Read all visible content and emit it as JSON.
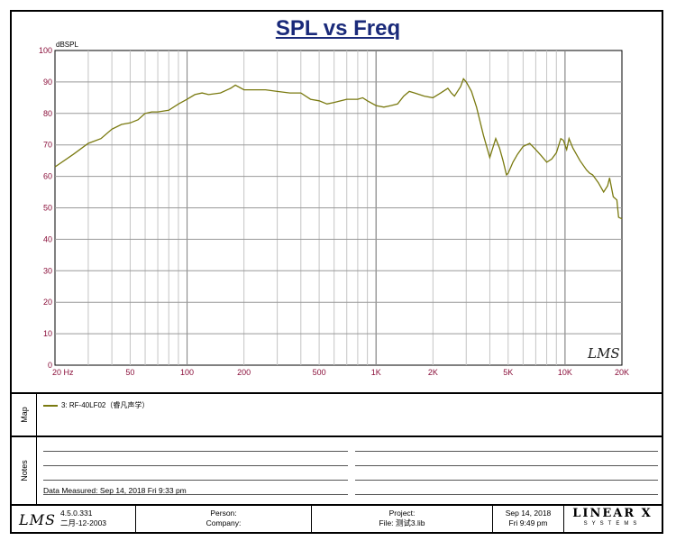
{
  "chart_data": {
    "type": "line",
    "title": "SPL vs Freq",
    "ylabel": "dBSPL",
    "xlabel": "",
    "xscale": "log",
    "xlim": [
      20,
      20000
    ],
    "ylim": [
      0,
      100
    ],
    "grid": true,
    "x_tick_labels": [
      {
        "value": 20,
        "label": "20 Hz"
      },
      {
        "value": 50,
        "label": "50"
      },
      {
        "value": 100,
        "label": "100"
      },
      {
        "value": 200,
        "label": "200"
      },
      {
        "value": 500,
        "label": "500"
      },
      {
        "value": 1000,
        "label": "1K"
      },
      {
        "value": 2000,
        "label": "2K"
      },
      {
        "value": 5000,
        "label": "5K"
      },
      {
        "value": 10000,
        "label": "10K"
      },
      {
        "value": 20000,
        "label": "20K"
      }
    ],
    "y_ticks": [
      0,
      10,
      20,
      30,
      40,
      50,
      60,
      70,
      80,
      90,
      100
    ],
    "series": [
      {
        "name": "3: RF-40LF02（睿凡声学）",
        "color": "#7a7a10",
        "x": [
          20,
          25,
          30,
          35,
          40,
          45,
          50,
          55,
          60,
          65,
          70,
          80,
          90,
          100,
          110,
          120,
          130,
          150,
          170,
          180,
          200,
          230,
          260,
          300,
          350,
          400,
          450,
          500,
          550,
          600,
          700,
          800,
          850,
          900,
          1000,
          1100,
          1200,
          1300,
          1400,
          1500,
          1600,
          1800,
          2000,
          2200,
          2400,
          2500,
          2600,
          2800,
          2900,
          3000,
          3200,
          3400,
          3700,
          4000,
          4300,
          4500,
          4700,
          4900,
          5000,
          5300,
          5600,
          6000,
          6500,
          7000,
          7500,
          8000,
          8500,
          9000,
          9500,
          9800,
          10200,
          10500,
          11000,
          12000,
          13000,
          13500,
          14000,
          15000,
          16000,
          16800,
          17200,
          18000,
          18800,
          19200,
          20000
        ],
        "y": [
          63,
          67,
          70.5,
          72,
          75,
          76.5,
          77,
          78,
          80,
          80.5,
          80.5,
          81,
          83,
          84.5,
          86,
          86.5,
          86,
          86.5,
          88,
          89,
          87.5,
          87.5,
          87.5,
          87,
          86.5,
          86.5,
          84.5,
          84,
          83,
          83.5,
          84.5,
          84.5,
          85,
          84,
          82.5,
          82,
          82.5,
          83,
          85.5,
          87,
          86.5,
          85.5,
          85,
          86.5,
          88,
          86.5,
          85.5,
          88.5,
          91,
          90,
          87,
          82,
          73,
          66,
          72,
          69,
          65,
          60.5,
          61,
          64.5,
          67,
          69.5,
          70.5,
          68.5,
          66.5,
          64.5,
          65.5,
          67.5,
          72,
          71.5,
          68.5,
          72,
          69,
          65,
          62,
          61,
          60.5,
          58,
          55,
          57,
          59.5,
          53.5,
          52.5,
          47,
          46.5
        ]
      }
    ]
  },
  "watermark_logo": "LMS",
  "map_label": "Map",
  "notes_label": "Notes",
  "measured_label": "Data Measured: Sep 14, 2018  Fri  9:33 pm",
  "footer": {
    "logo": "LMS",
    "version": "4.5.0.331",
    "version_date": "二月-12-2003",
    "person_label": "Person:",
    "company_label": "Company:",
    "project_label": "Project:",
    "file_label": "File: 测试3.lib",
    "date": "Sep 14, 2018",
    "time": "Fri  9:49 pm",
    "brand_main": "LINEAR X",
    "brand_sub": "SYSTEMS"
  }
}
